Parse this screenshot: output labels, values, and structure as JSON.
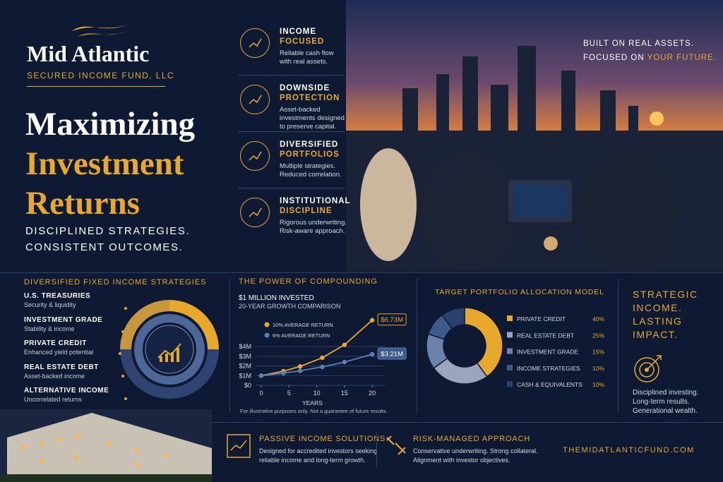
{
  "brand": {
    "name": "Mid Atlantic",
    "subtitle": "SECURED INCOME FUND, LLC"
  },
  "headline": {
    "line1": "Maximizing",
    "line2": "Investment",
    "line3": "Returns"
  },
  "tagline": [
    "DISCIPLINED STRATEGIES.",
    "CONSISTENT OUTCOMES."
  ],
  "features": [
    {
      "title": [
        "INCOME",
        "FOCUSED"
      ],
      "desc": [
        "Reliable cash flow",
        "with real assets."
      ]
    },
    {
      "title": [
        "DOWNSIDE",
        "PROTECTION"
      ],
      "desc": [
        "Asset-backed",
        "investments designed",
        "to preserve capital."
      ]
    },
    {
      "title": [
        "DIVERSIFIED",
        "PORTFOLIOS"
      ],
      "desc": [
        "Multiple strategies.",
        "Reduced correlation."
      ]
    },
    {
      "title": [
        "INSTITUTIONAL",
        "DISCIPLINE"
      ],
      "desc": [
        "Rigorous underwriting.",
        "Risk-aware approach."
      ]
    }
  ],
  "hero": {
    "line1": "BUILT ON REAL ASSETS.",
    "line2": "FOCUSED ON",
    "line2_highlight": "YOUR FUTURE."
  },
  "strategies": {
    "title": "DIVERSIFIED FIXED INCOME STRATEGIES",
    "items": [
      {
        "name": "U.S. TREASURIES",
        "desc": "Security & liquidity"
      },
      {
        "name": "INVESTMENT GRADE",
        "desc": "Stability & income"
      },
      {
        "name": "PRIVATE CREDIT",
        "desc": "Enhanced yield potential"
      },
      {
        "name": "REAL ESTATE DEBT",
        "desc": "Asset-backed income"
      },
      {
        "name": "ALTERNATIVE INCOME",
        "desc": "Uncorrelated returns"
      }
    ]
  },
  "chart_data": [
    {
      "type": "line",
      "title": "THE POWER OF COMPOUNDING",
      "subtitle": "$1 MILLION INVESTED",
      "subtitle2": "20-YEAR GROWTH COMPARISON",
      "x_label": "YEARS",
      "note": "For illustrative purposes only. Not a guarantee of future results.",
      "x": [
        0,
        4,
        7,
        11,
        15,
        20
      ],
      "series": [
        {
          "name": "10% AVERAGE RETURN",
          "color": "#e8a82c",
          "values": [
            1,
            1.46,
            1.95,
            2.85,
            4.18,
            6.73
          ],
          "value_labels": [
            null,
            null,
            null,
            null,
            null,
            "$6.73M"
          ]
        },
        {
          "name": "6% AVERAGE RETURN",
          "color": "#5b7fb8",
          "values": [
            1,
            1.26,
            1.5,
            1.9,
            2.4,
            3.21
          ],
          "value_labels": [
            null,
            null,
            null,
            null,
            null,
            "$3.21M"
          ]
        }
      ],
      "xlim": [
        0,
        21
      ],
      "ylim": [
        0,
        7
      ],
      "xticks": [
        0,
        5,
        10,
        15,
        20
      ],
      "yticks": [
        {
          "value": 0,
          "label": "$0"
        },
        {
          "value": 1,
          "label": "$1M"
        },
        {
          "value": 2,
          "label": "$2M"
        },
        {
          "value": 3,
          "label": "$3M"
        },
        {
          "value": 4,
          "label": "$4M"
        }
      ],
      "grid": true
    },
    {
      "type": "donut",
      "title": "TARGET PORTFOLIO ALLOCATION MODEL",
      "categories": [
        "PRIVATE CREDIT",
        "REAL ESTATE DEBT",
        "INVESTMENT GRADE",
        "INCOME STRATEGIES",
        "CASH & EQUIVALENTS"
      ],
      "values": [
        40,
        25,
        15,
        10,
        10
      ],
      "value_labels": [
        "40%",
        "25%",
        "15%",
        "10%",
        "10%"
      ],
      "colors": [
        "#e8a82c",
        "#9aa6bd",
        "#6d82a8",
        "#3d5a8a",
        "#2a4170"
      ]
    }
  ],
  "impact": {
    "title": [
      "STRATEGIC",
      "INCOME.",
      "LASTING",
      "IMPACT."
    ],
    "lines": [
      "Disciplined investing.",
      "Long-term results.",
      "Generational wealth."
    ]
  },
  "footer": {
    "passive": {
      "title": "PASSIVE INCOME SOLUTIONS",
      "desc": [
        "Designed for accredited investors seeking",
        "reliable income and long-term growth."
      ]
    },
    "risk": {
      "title": "RISK-MANAGED APPROACH",
      "desc": [
        "Conservative underwriting. Strong collateral.",
        "Alignment with investor objectives."
      ]
    },
    "url": "THEMIDATLANTICFUND.COM"
  }
}
